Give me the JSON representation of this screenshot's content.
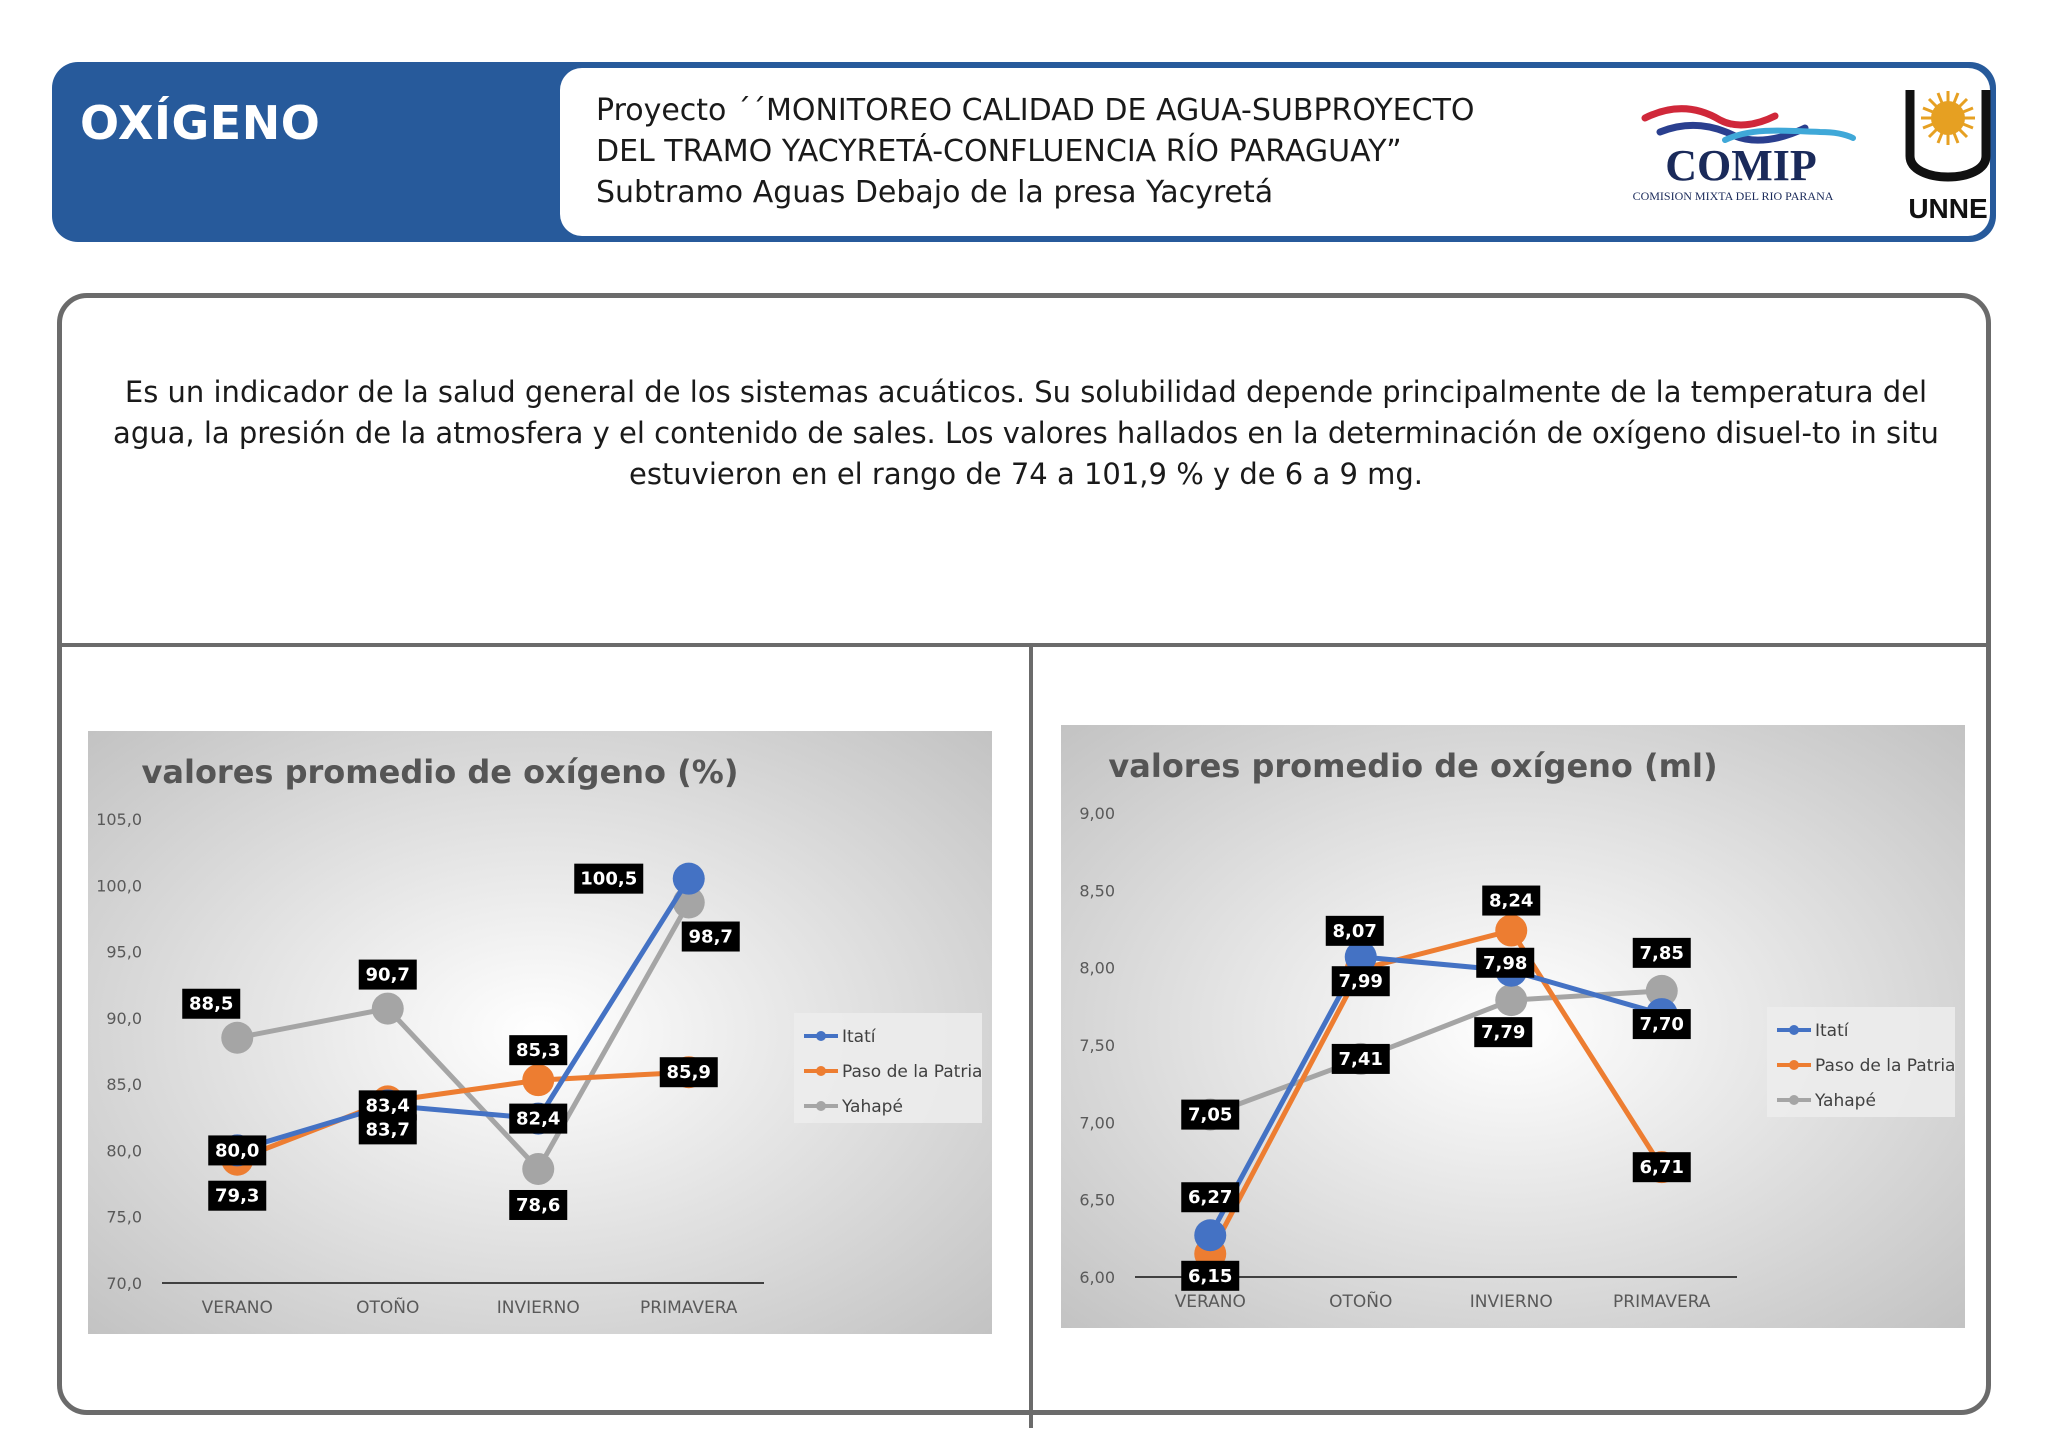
{
  "header": {
    "title": "OXÍGENO",
    "project_lines": [
      "Proyecto ´´MONITOREO CALIDAD DE AGUA-SUBPROYECTO",
      "DEL TRAMO YACYRETÁ-CONFLUENCIA RÍO PARAGUAY”",
      "Subtramo Aguas Debajo de la presa Yacyretá"
    ],
    "logo_comip": {
      "name": "COMIP",
      "subtitle": "COMISION MIXTA DEL RIO PARANA"
    },
    "logo_unne": {
      "name": "UNNE"
    }
  },
  "description": "Es un indicador de la salud general de los sistemas acuáticos. Su solubilidad depende principalmente de la temperatura del agua, la presión de la atmosfera y el contenido de sales. Los valores hallados en la determinación de oxígeno disuel-to in situ estuvieron en el rango de 74 a 101,9 % y de 6 a 9 mg.",
  "colors": {
    "header_blue": "#275a9b",
    "itati": "#4472c4",
    "paso": "#ed7d31",
    "yahape": "#a5a5a5"
  },
  "chart_data": [
    {
      "type": "line",
      "title": "valores promedio de oxígeno (%)",
      "categories": [
        "VERANO",
        "OTOÑO",
        "INVIERNO",
        "PRIMAVERA"
      ],
      "ylim": [
        70,
        105
      ],
      "yticks": [
        70,
        75,
        80,
        85,
        90,
        95,
        100,
        105
      ],
      "ytick_labels": [
        "70,0",
        "75,0",
        "80,0",
        "85,0",
        "90,0",
        "95,0",
        "100,0",
        "105,0"
      ],
      "legend_position": "right",
      "series": [
        {
          "name": "Itatí",
          "values": [
            80.0,
            83.4,
            82.4,
            100.5
          ],
          "labels": [
            "80,0",
            "83,4",
            "82,4",
            "100,5"
          ]
        },
        {
          "name": "Paso de la Patria",
          "values": [
            79.3,
            83.7,
            85.3,
            85.9
          ],
          "labels": [
            "79,3",
            "83,7",
            "85,3",
            "85,9"
          ]
        },
        {
          "name": "Yahapé",
          "values": [
            88.5,
            90.7,
            78.6,
            98.7
          ],
          "labels": [
            "88,5",
            "90,7",
            "78,6",
            "98,7"
          ]
        }
      ]
    },
    {
      "type": "line",
      "title": "valores promedio de oxígeno (ml)",
      "categories": [
        "VERANO",
        "OTOÑO",
        "INVIERNO",
        "PRIMAVERA"
      ],
      "ylim": [
        6,
        9
      ],
      "yticks": [
        6,
        6.5,
        7,
        7.5,
        8,
        8.5,
        9
      ],
      "ytick_labels": [
        "6,00",
        "6,50",
        "7,00",
        "7,50",
        "8,00",
        "8,50",
        "9,00"
      ],
      "legend_position": "right",
      "series": [
        {
          "name": "Itatí",
          "values": [
            6.27,
            8.07,
            7.98,
            7.7
          ],
          "labels": [
            "6,27",
            "8,07",
            "7,98",
            "7,70"
          ]
        },
        {
          "name": "Paso de la Patria",
          "values": [
            6.15,
            7.99,
            8.24,
            6.71
          ],
          "labels": [
            "6,15",
            "7,99",
            "8,24",
            "6,71"
          ]
        },
        {
          "name": "Yahapé",
          "values": [
            7.05,
            7.41,
            7.79,
            7.85
          ],
          "labels": [
            "7,05",
            "7,41",
            "7,79",
            "7,85"
          ]
        }
      ]
    }
  ]
}
